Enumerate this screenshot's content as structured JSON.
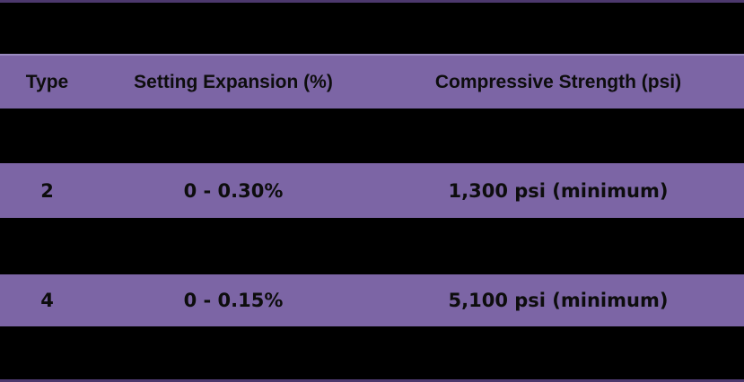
{
  "colors": {
    "background": "#000000",
    "band": "#7C65A5",
    "outer_border": "#4C386D",
    "header_top_border": "#9A8BC0",
    "text": "#0D0D0D"
  },
  "table": {
    "columns": [
      {
        "label": "Type"
      },
      {
        "label": "Setting Expansion (%)"
      },
      {
        "label": "Compressive Strength (psi)"
      }
    ],
    "rows": [
      {
        "type": "2",
        "setting_expansion": "0 - 0.30%",
        "compressive_strength": "1,300 psi (minimum)"
      },
      {
        "type": "4",
        "setting_expansion": "0 - 0.15%",
        "compressive_strength": "5,100 psi (minimum)"
      }
    ]
  },
  "chart_data": {
    "type": "table",
    "columns": [
      "Type",
      "Setting Expansion (%)",
      "Compressive Strength (psi)"
    ],
    "rows": [
      [
        "2",
        "0 - 0.30%",
        "1,300 psi (minimum)"
      ],
      [
        "4",
        "0 - 0.15%",
        "5,100 psi (minimum)"
      ]
    ],
    "layout_hints": {
      "banded_rows": true,
      "visible_band_color": "#7C65A5",
      "hidden_band_color": "#000000",
      "column_alignment": [
        "center",
        "center",
        "center"
      ]
    }
  }
}
